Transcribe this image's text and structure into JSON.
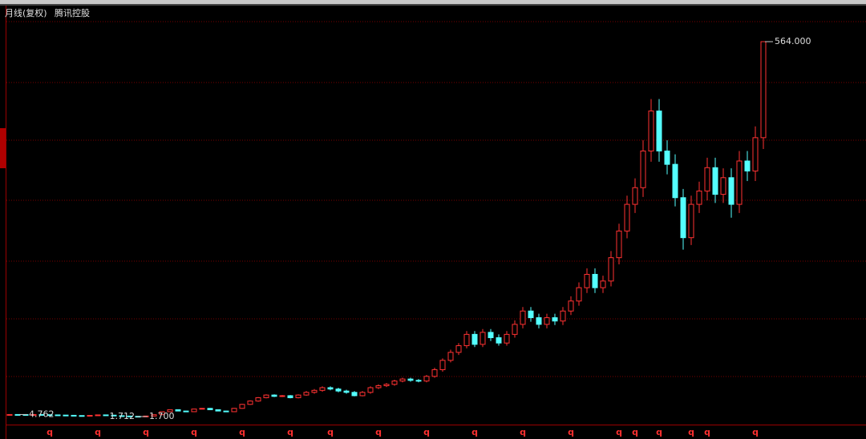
{
  "chart_data": {
    "type": "candlestick",
    "title": "月线(复权)",
    "subtitle": "腾讯控股",
    "up_color": "#ff3232",
    "down_color": "#54ffff",
    "open": [
      4.7,
      4.8,
      4.762,
      4.7,
      4.8,
      4.5,
      4.2,
      3.9,
      3.6,
      3.2,
      3.0,
      3.5,
      4.2,
      3.8,
      3.0,
      2.5,
      2.1,
      1.8,
      2.5,
      4.5,
      9,
      12,
      10,
      9,
      13,
      14,
      12,
      10,
      9,
      14,
      20,
      25,
      30,
      34,
      32,
      33,
      30,
      34,
      38,
      41,
      45,
      43,
      40,
      38,
      33,
      38,
      45,
      48,
      50,
      55,
      58,
      56,
      55,
      62,
      72,
      86,
      98,
      108,
      125,
      110,
      128,
      120,
      112,
      125,
      140,
      160,
      150,
      140,
      150,
      145,
      160,
      175,
      195,
      215,
      195,
      205,
      240,
      280,
      320,
      345,
      400,
      460,
      400,
      380,
      330,
      270,
      320,
      340,
      375,
      335,
      360,
      320,
      385,
      370,
      420
    ],
    "high": [
      5.0,
      5.0,
      4.9,
      5.0,
      5.0,
      4.7,
      4.4,
      4.1,
      3.7,
      3.3,
      3.6,
      4.4,
      4.4,
      4.0,
      3.1,
      2.6,
      2.2,
      2.6,
      4.7,
      9.4,
      12.5,
      12.5,
      10.4,
      13.5,
      14.6,
      14.6,
      12.5,
      10.4,
      14.6,
      20.8,
      26,
      31,
      35,
      35,
      34,
      34,
      35,
      40,
      43,
      47,
      47,
      45,
      42,
      40,
      40,
      47,
      50,
      52,
      57,
      60,
      60,
      58,
      64,
      75,
      89,
      102,
      112,
      130,
      130,
      133,
      133,
      125,
      130,
      146,
      166,
      166,
      156,
      156,
      156,
      166,
      182,
      203,
      224,
      224,
      213,
      250,
      291,
      333,
      359,
      416,
      478,
      478,
      416,
      395,
      343,
      333,
      354,
      390,
      390,
      374,
      374,
      400,
      400,
      437,
      564
    ],
    "low": [
      4.5,
      4.6,
      4.5,
      4.5,
      4.3,
      4.0,
      3.7,
      3.5,
      3.1,
      2.9,
      2.9,
      3.4,
      3.6,
      2.9,
      2.4,
      2.0,
      1.7,
      1.712,
      2.4,
      4.3,
      8.6,
      9.6,
      8.6,
      8.6,
      12.5,
      11.5,
      9.6,
      8.6,
      8.6,
      13.4,
      19.2,
      24,
      29,
      31,
      31,
      29,
      29,
      33,
      36,
      39,
      41,
      38,
      36,
      32,
      32,
      36,
      43,
      46,
      48,
      53,
      54,
      53,
      53,
      60,
      69,
      83,
      94,
      104,
      106,
      106,
      115,
      108,
      108,
      120,
      134,
      144,
      134,
      134,
      139,
      139,
      154,
      168,
      187,
      187,
      187,
      197,
      230,
      269,
      307,
      331,
      384,
      384,
      365,
      317,
      252,
      259,
      307,
      326,
      322,
      322,
      300,
      307,
      355,
      355,
      403
    ],
    "close": [
      4.8,
      4.762,
      4.7,
      4.8,
      4.5,
      4.2,
      3.9,
      3.6,
      3.2,
      3.0,
      3.5,
      4.2,
      3.8,
      3.0,
      2.5,
      2.1,
      1.8,
      2.5,
      4.5,
      9,
      12,
      10,
      9,
      13,
      14,
      12,
      10,
      9,
      14,
      20,
      25,
      30,
      34,
      32,
      33,
      30,
      34,
      38,
      41,
      45,
      43,
      40,
      38,
      33,
      38,
      45,
      48,
      50,
      55,
      58,
      56,
      55,
      62,
      72,
      86,
      98,
      108,
      125,
      110,
      128,
      120,
      112,
      125,
      140,
      160,
      150,
      140,
      150,
      145,
      160,
      175,
      195,
      215,
      195,
      205,
      240,
      280,
      320,
      345,
      400,
      460,
      400,
      380,
      330,
      270,
      320,
      340,
      375,
      335,
      360,
      320,
      385,
      370,
      420,
      564
    ],
    "annotations": [
      {
        "text": "564.000",
        "index": 94,
        "value": 564,
        "side": "right"
      },
      {
        "text": "4.762",
        "index": 1,
        "value": 4.762,
        "side": "right"
      },
      {
        "text": "1.712",
        "index": 17,
        "value": 1.712,
        "side": "left"
      },
      {
        "text": "1.700",
        "index": 16,
        "value": 1.7,
        "side": "right"
      }
    ],
    "markers": {
      "label": "q",
      "indices": [
        5,
        11,
        17,
        23,
        29,
        35,
        40,
        46,
        52,
        58,
        64,
        70,
        76,
        78,
        81,
        85,
        87,
        93
      ]
    }
  }
}
